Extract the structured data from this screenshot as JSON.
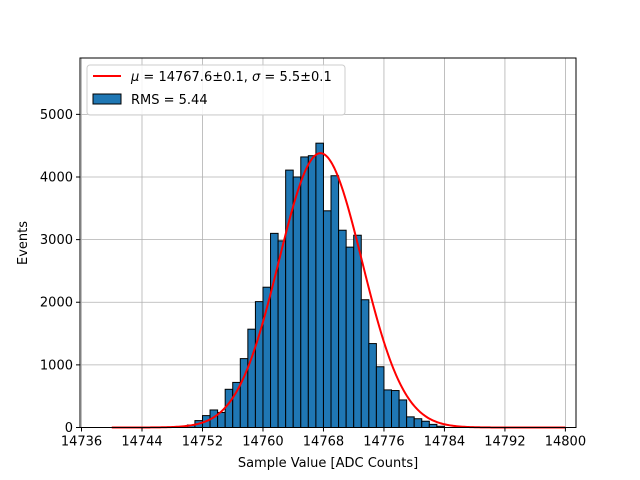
{
  "chart_data": {
    "type": "bar",
    "xlabel": "Sample Value [ADC Counts]",
    "ylabel": "Events",
    "xlim": [
      14735.8,
      14801.4
    ],
    "ylim": [
      0,
      5900
    ],
    "xticks": [
      14736,
      14744,
      14752,
      14760,
      14768,
      14776,
      14784,
      14792,
      14800
    ],
    "yticks": [
      0,
      1000,
      2000,
      3000,
      4000,
      5000
    ],
    "grid": true,
    "legend_position": "top-left",
    "bar_color": "#1f77b4",
    "fit_color": "#ff0000",
    "histogram": {
      "name": "RMS = 5.44",
      "bin_width": 1,
      "bin_edges_start": 14750,
      "counts": [
        40,
        110,
        190,
        280,
        240,
        610,
        720,
        1100,
        1570,
        2010,
        2240,
        3100,
        2980,
        4110,
        4000,
        4320,
        4340,
        4540,
        3460,
        4020,
        3150,
        2880,
        3070,
        2040,
        1340,
        970,
        600,
        590,
        440,
        170,
        140,
        100,
        50,
        20
      ]
    },
    "fit": {
      "name_mu": "14767.6±0.1",
      "name_sigma": "5.5±0.1",
      "mu": 14767.6,
      "sigma": 5.5,
      "amplitude": 4380,
      "x_range": [
        14740,
        14800
      ]
    }
  }
}
